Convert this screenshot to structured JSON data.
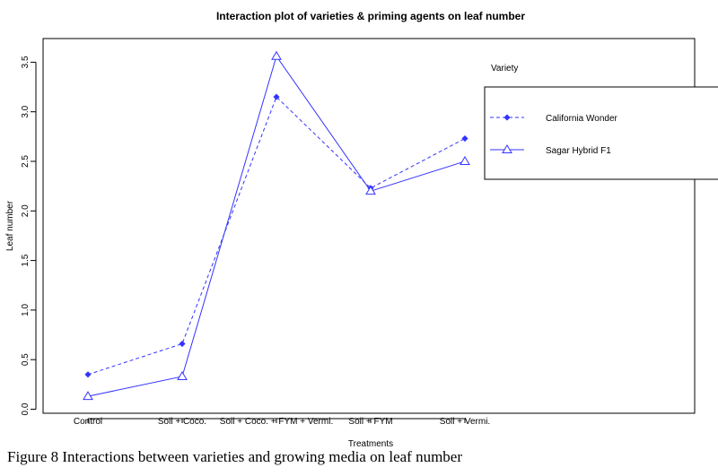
{
  "figure_caption": "Figure 8 Interactions between varieties and growing media on leaf number",
  "chart_data": {
    "type": "line",
    "title": "Interaction plot of varieties & priming agents on leaf number",
    "xlabel": "Treatments",
    "ylabel": "Leaf number",
    "categories": [
      "Control",
      "Soil + Coco.",
      "Soil + Coco. + FYM + Vermi.",
      "Soil + FYM",
      "Soil + Vermi."
    ],
    "ylim": [
      0.0,
      3.6
    ],
    "yticks": [
      "0.0",
      "0.5",
      "1.0",
      "1.5",
      "2.0",
      "2.5",
      "3.0",
      "3.5"
    ],
    "legend_title": "Variety",
    "legend_position": "top-right",
    "grid": false,
    "series": [
      {
        "name": "California Wonder",
        "values": [
          0.35,
          0.66,
          3.15,
          2.23,
          2.73
        ],
        "line": "dashed",
        "marker": "diamond",
        "color": "#3333ff"
      },
      {
        "name": "Sagar Hybrid F1",
        "values": [
          0.13,
          0.33,
          3.56,
          2.2,
          2.5
        ],
        "line": "solid",
        "marker": "triangle",
        "color": "#3333ff"
      }
    ]
  }
}
